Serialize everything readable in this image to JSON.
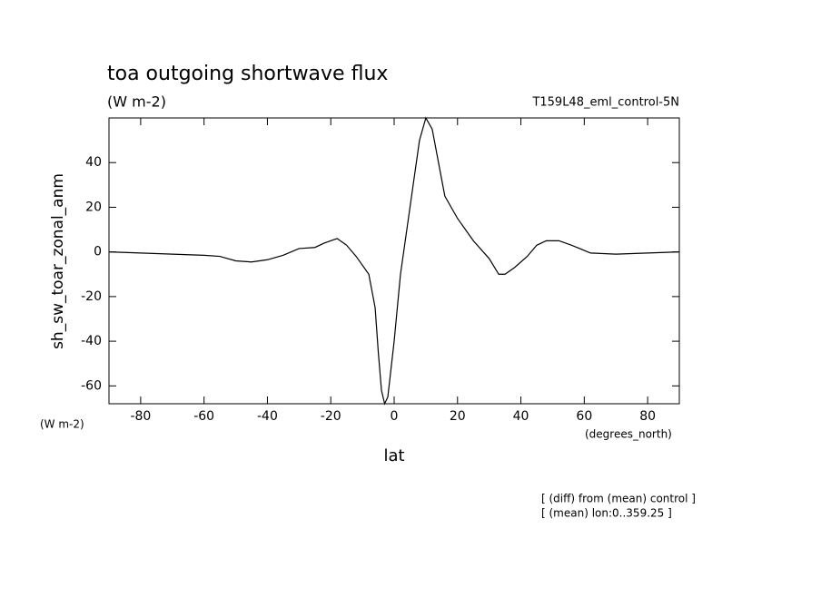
{
  "chart_data": {
    "type": "line",
    "title": "toa outgoing shortwave flux",
    "subtitle": "(W m-2)",
    "dataset": "T159L48_eml_control-5N",
    "y_label": "sh_sw_toar_zonal_anm",
    "y_units": "(W m-2)",
    "x_units": "(degrees_north)",
    "x_label": "lat",
    "notes": [
      "[ (diff) from (mean) control ]",
      "[ (mean) lon:0..359.25 ]"
    ],
    "color": "#000000",
    "x": [
      -90,
      -80,
      -70,
      -60,
      -55,
      -50,
      -45,
      -40,
      -35,
      -30,
      -25,
      -22,
      -18,
      -15,
      -12,
      -8,
      -6,
      -5,
      -4,
      -3,
      -2,
      0,
      2,
      4,
      6,
      8,
      10,
      12,
      14,
      16,
      20,
      25,
      30,
      33,
      35,
      38,
      42,
      45,
      48,
      52,
      56,
      62,
      70,
      80,
      90
    ],
    "values": [
      0,
      -0.5,
      -1,
      -1.5,
      -2,
      -4,
      -4.5,
      -3.5,
      -1.5,
      1.5,
      2,
      4,
      6,
      3,
      -2,
      -10,
      -25,
      -45,
      -62,
      -68,
      -65,
      -40,
      -10,
      10,
      30,
      50,
      60,
      55,
      40,
      25,
      15,
      5,
      -3,
      -10,
      -10,
      -7,
      -2,
      3,
      5,
      5,
      3,
      -0.5,
      -1,
      -0.5,
      0
    ],
    "xlim": [
      -90,
      90
    ],
    "ylim": [
      -68,
      60
    ],
    "xticks": [
      -80,
      -60,
      -40,
      -20,
      0,
      20,
      40,
      60,
      80
    ],
    "yticks": [
      -60,
      -40,
      -20,
      0,
      20,
      40
    ]
  }
}
